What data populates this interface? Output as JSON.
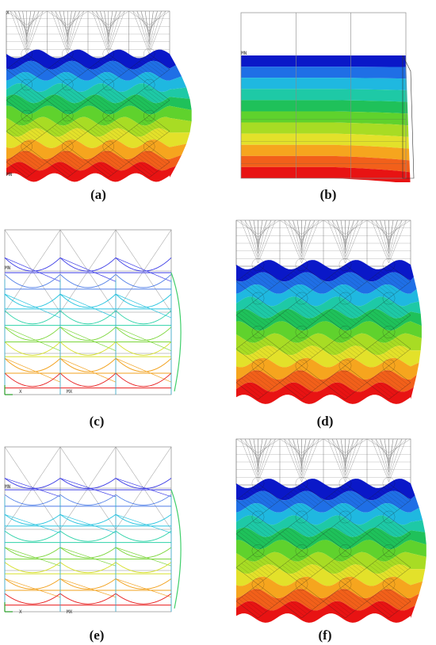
{
  "panels": [
    {
      "id": "a",
      "caption": "(a)",
      "kind": "contour_dense",
      "min_label": "MN",
      "max_label": "MX",
      "axis_label": "X"
    },
    {
      "id": "b",
      "caption": "(b)",
      "kind": "contour_smooth",
      "min_label": "MN",
      "max_label": "",
      "axis_label": ""
    },
    {
      "id": "c",
      "caption": "(c)",
      "kind": "truss",
      "min_label": "MN",
      "max_label": "MX",
      "axis_label": "X"
    },
    {
      "id": "d",
      "caption": "(d)",
      "kind": "contour_dense",
      "min_label": "",
      "max_label": "",
      "axis_label": ""
    },
    {
      "id": "e",
      "caption": "(e)",
      "kind": "truss",
      "min_label": "MN",
      "max_label": "MX",
      "axis_label": "X"
    },
    {
      "id": "f",
      "caption": "(f)",
      "kind": "contour_dense",
      "min_label": "",
      "max_label": "",
      "axis_label": ""
    }
  ],
  "colors": {
    "band_palette": [
      "#0a18c8",
      "#1f6fe6",
      "#1fb8e0",
      "#1ec9a6",
      "#1fc15a",
      "#5fd22d",
      "#a8dc24",
      "#e3e12a",
      "#f6a51e",
      "#f2601a",
      "#e81313"
    ],
    "undeformed_mesh": "#7a7a7a",
    "truss_frame": "#8a8a8a"
  }
}
